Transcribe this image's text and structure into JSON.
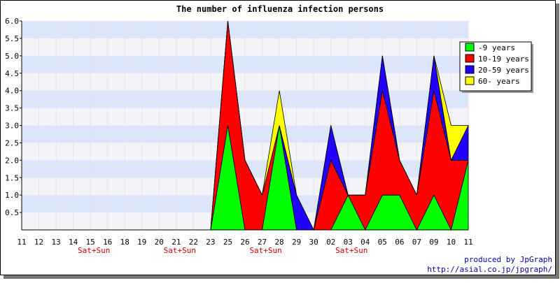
{
  "chart_data": {
    "type": "area",
    "stacked": true,
    "title": "The number of influenza infection persons",
    "xlabel": "",
    "ylabel": "",
    "ylim": [
      0,
      6
    ],
    "yticks": [
      "6.0",
      "5.5",
      "5.0",
      "4.5",
      "4.0",
      "3.5",
      "3.0",
      "2.5",
      "2.0",
      "1.5",
      "1.0",
      "0.5"
    ],
    "grid": "horizontal bands (light blue / light gray)",
    "legend_position": "top-right",
    "categories": [
      "11",
      "12",
      "13",
      "14",
      "15",
      "16",
      "18",
      "19",
      "20",
      "21",
      "22",
      "23",
      "25",
      "26",
      "27",
      "28",
      "29",
      "30",
      "02",
      "03",
      "04",
      "05",
      "06",
      "07",
      "09",
      "10",
      "11"
    ],
    "weekend_marks": [
      {
        "category_index": 4,
        "label": "Sat+Sun"
      },
      {
        "category_index": 9,
        "label": "Sat+Sun"
      },
      {
        "category_index": 14,
        "label": "Sat+Sun"
      },
      {
        "category_index": 19,
        "label": "Sat+Sun"
      }
    ],
    "series": [
      {
        "name": "-9 years",
        "color": "#00ff00",
        "values": [
          0,
          0,
          0,
          0,
          0,
          0,
          0,
          0,
          0,
          0,
          0,
          0,
          3,
          0,
          0,
          3,
          0,
          0,
          0,
          1,
          0,
          1,
          1,
          0,
          1,
          0,
          2
        ]
      },
      {
        "name": "10-19 years",
        "color": "#ff0000",
        "values": [
          0,
          0,
          0,
          0,
          0,
          0,
          0,
          0,
          0,
          0,
          0,
          0,
          3,
          2,
          1,
          0,
          0,
          0,
          2,
          0,
          1,
          3,
          1,
          1,
          3,
          2,
          0
        ]
      },
      {
        "name": "20-59 years",
        "color": "#2200ff",
        "values": [
          0,
          0,
          0,
          0,
          0,
          0,
          0,
          0,
          0,
          0,
          0,
          0,
          0,
          0,
          0,
          0,
          1,
          0,
          1,
          0,
          0,
          1,
          0,
          0,
          1,
          0,
          1
        ]
      },
      {
        "name": "60- years",
        "color": "#ffff00",
        "values": [
          0,
          0,
          0,
          0,
          0,
          0,
          0,
          0,
          0,
          0,
          0,
          0,
          0,
          0,
          0,
          1,
          0,
          0,
          0,
          0,
          0,
          0,
          0,
          0,
          0,
          1,
          0
        ]
      }
    ]
  },
  "footer": {
    "credit": "produced by JpGraph",
    "url": "http://asial.co.jp/jpgraph/"
  }
}
